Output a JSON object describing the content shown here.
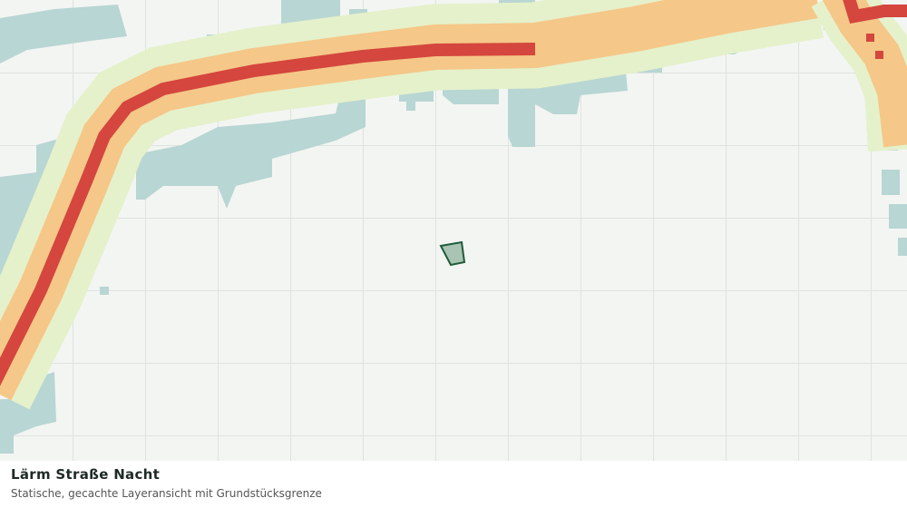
{
  "header": {
    "title": "Lärm Straße Nacht",
    "subtitle": "Statische, gecachte Layeransicht mit Grundstücksgrenze"
  }
}
